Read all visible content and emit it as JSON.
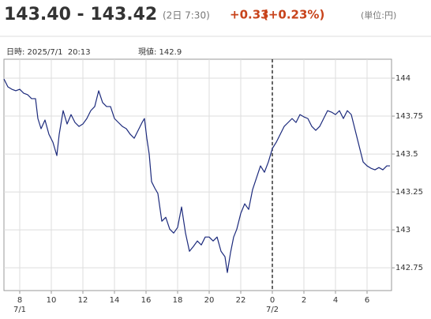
{
  "header": {
    "title": "143.40 - 143.42",
    "time": "(2日 7:30)",
    "change": "+0.33",
    "change_pct": "(+0.23%)",
    "unit": "(単位:円)"
  },
  "info": {
    "datetime": "日時: 2025/7/1  20:13",
    "current": "現値: 142.9"
  },
  "chart_data": {
    "type": "line",
    "color": "#1c2a7c",
    "grid": true,
    "x": [
      7,
      7.25,
      7.5,
      7.75,
      8,
      8.25,
      8.5,
      8.75,
      9,
      9.15,
      9.35,
      9.6,
      9.85,
      10.1,
      10.35,
      10.5,
      10.75,
      11,
      11.25,
      11.5,
      11.75,
      12,
      12.25,
      12.5,
      12.75,
      13,
      13.25,
      13.5,
      13.75,
      14,
      14.25,
      14.5,
      14.75,
      15,
      15.25,
      15.5,
      15.75,
      15.9,
      16.05,
      16.2,
      16.35,
      16.55,
      16.75,
      17,
      17.25,
      17.5,
      17.75,
      18,
      18.25,
      18.5,
      18.75,
      19,
      19.25,
      19.5,
      19.75,
      20,
      20.25,
      20.5,
      20.75,
      21,
      21.15,
      21.35,
      21.55,
      21.75,
      22,
      22.25,
      22.5,
      22.75,
      23,
      23.25,
      23.5,
      23.75,
      24,
      24.25,
      24.5,
      24.75,
      25,
      25.25,
      25.5,
      25.75,
      26,
      26.25,
      26.5,
      26.75,
      27,
      27.25,
      27.5,
      27.75,
      28,
      28.25,
      28.5,
      28.75,
      29,
      29.25,
      29.5,
      29.75,
      30,
      30.25,
      30.5,
      30.75,
      31,
      31.25,
      31.45
    ],
    "values": [
      143.995,
      143.943,
      143.927,
      143.917,
      143.927,
      143.901,
      143.891,
      143.865,
      143.865,
      143.734,
      143.667,
      143.724,
      143.63,
      143.578,
      143.49,
      143.63,
      143.786,
      143.698,
      143.76,
      143.708,
      143.682,
      143.698,
      143.734,
      143.786,
      143.813,
      143.917,
      143.839,
      143.813,
      143.813,
      143.734,
      143.708,
      143.682,
      143.667,
      143.63,
      143.604,
      143.656,
      143.708,
      143.734,
      143.604,
      143.5,
      143.318,
      143.276,
      143.24,
      143.057,
      143.083,
      143.005,
      142.979,
      143.016,
      143.151,
      142.979,
      142.859,
      142.891,
      142.927,
      142.901,
      142.953,
      142.953,
      142.927,
      142.953,
      142.859,
      142.823,
      142.719,
      142.849,
      142.953,
      143.005,
      143.109,
      143.172,
      143.135,
      143.266,
      143.344,
      143.422,
      143.38,
      143.448,
      143.536,
      143.578,
      143.63,
      143.682,
      143.708,
      143.734,
      143.708,
      143.76,
      143.745,
      143.734,
      143.682,
      143.656,
      143.682,
      143.734,
      143.786,
      143.776,
      143.76,
      143.786,
      143.734,
      143.786,
      143.76,
      143.656,
      143.552,
      143.448,
      143.422,
      143.406,
      143.396,
      143.411,
      143.396,
      143.422,
      143.422
    ],
    "xlim": [
      7,
      31.55
    ],
    "xticks": [
      8,
      10,
      12,
      14,
      16,
      18,
      20,
      22,
      {
        "value": 24,
        "label": "0"
      },
      {
        "value": 26,
        "label": "2"
      },
      {
        "value": 28,
        "label": "4"
      },
      {
        "value": 30,
        "label": "6"
      }
    ],
    "date_labels": [
      {
        "value": 8,
        "label": "7/1"
      },
      {
        "value": 24,
        "label": "7/2"
      }
    ],
    "ylim": [
      142.6,
      144.125
    ],
    "yticks": [
      142.75,
      143,
      143.25,
      143.5,
      143.75,
      144
    ]
  }
}
